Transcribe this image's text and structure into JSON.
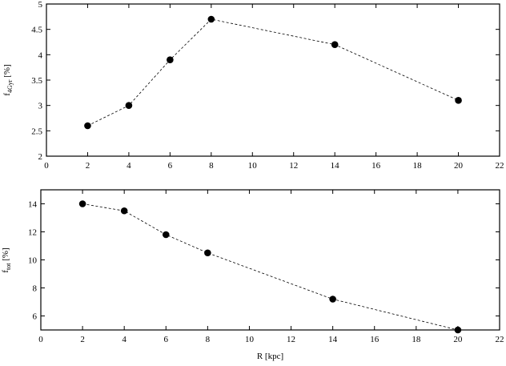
{
  "chart_data": [
    {
      "type": "line",
      "ylabel": "f_{4Gyr} [%]",
      "ylabel_main": "f",
      "ylabel_sub": "4Gyr",
      "ylabel_unit": " [%]",
      "xlabel": "",
      "xlim": [
        0,
        22
      ],
      "ylim": [
        2,
        5
      ],
      "x_ticks": [
        0,
        2,
        4,
        6,
        8,
        10,
        12,
        14,
        16,
        18,
        20,
        22
      ],
      "y_ticks": [
        2,
        2.5,
        3,
        3.5,
        4,
        4.5,
        5
      ],
      "grid": false,
      "series": [
        {
          "x": [
            2,
            4,
            6,
            8,
            14,
            20
          ],
          "y": [
            2.6,
            3.0,
            3.9,
            4.7,
            4.2,
            3.1
          ],
          "color": "#000000",
          "marker": "filled-circle",
          "line_style": "dashed"
        }
      ]
    },
    {
      "type": "line",
      "ylabel": "f_{tot} [%]",
      "ylabel_main": "f",
      "ylabel_sub": "tot",
      "ylabel_unit": " [%]",
      "xlabel": "R [kpc]",
      "xlim": [
        0,
        22
      ],
      "ylim": [
        5,
        15
      ],
      "x_ticks": [
        0,
        2,
        4,
        6,
        8,
        10,
        12,
        14,
        16,
        18,
        20,
        22
      ],
      "y_ticks": [
        6,
        8,
        10,
        12,
        14
      ],
      "grid": false,
      "series": [
        {
          "x": [
            2,
            4,
            6,
            8,
            14,
            20
          ],
          "y": [
            14.0,
            13.5,
            11.8,
            10.5,
            7.2,
            5.0
          ],
          "color": "#000000",
          "marker": "filled-circle",
          "line_style": "dashed"
        }
      ]
    }
  ]
}
